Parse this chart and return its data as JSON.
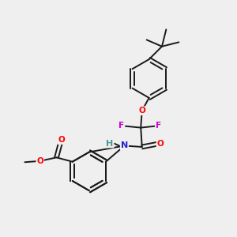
{
  "background_color": "#efefef",
  "bond_color": "#1a1a1a",
  "bond_width": 1.4,
  "atom_colors": {
    "O": "#ff0000",
    "N": "#2222cc",
    "F": "#cc00cc",
    "H": "#449999",
    "C": "#1a1a1a"
  },
  "figsize": [
    3.0,
    3.0
  ],
  "dpi": 100
}
